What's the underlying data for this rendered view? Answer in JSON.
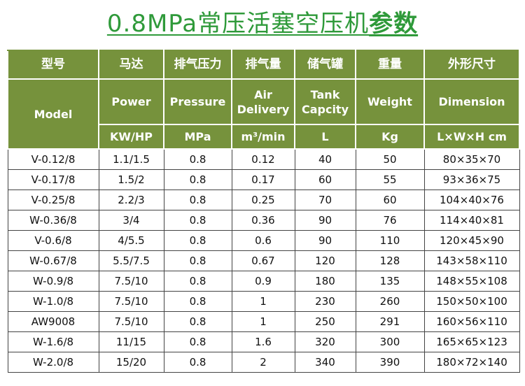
{
  "title": {
    "main": "0.8MPa常压活塞空压机",
    "emphasis": "参数"
  },
  "table": {
    "header_zh": [
      "型号",
      "马达",
      "排气压力",
      "排气量",
      "储气罐",
      "重量",
      "外形尺寸"
    ],
    "header_en": [
      "Model",
      "Power",
      "Pressure",
      "Air Delivery",
      "Tank Capcity",
      "Weight",
      "Dimension"
    ],
    "units": [
      "KW/HP",
      "MPa",
      "m³/min",
      "L",
      "Kg",
      "L×W×H cm"
    ],
    "rows": [
      [
        "V-0.12/8",
        "1.1/1.5",
        "0.8",
        "0.12",
        "40",
        "50",
        "80×35×70"
      ],
      [
        "V-0.17/8",
        "1.5/2",
        "0.8",
        "0.17",
        "60",
        "55",
        "93×36×75"
      ],
      [
        "V-0.25/8",
        "2.2/3",
        "0.8",
        "0.25",
        "70",
        "60",
        "104×40×76"
      ],
      [
        "W-0.36/8",
        "3/4",
        "0.8",
        "0.36",
        "90",
        "76",
        "114×40×81"
      ],
      [
        "V-0.6/8",
        "4/5.5",
        "0.8",
        "0.6",
        "90",
        "110",
        "120×45×90"
      ],
      [
        "W-0.67/8",
        "5.5/7.5",
        "0.8",
        "0.67",
        "120",
        "128",
        "143×58×110"
      ],
      [
        "W-0.9/8",
        "7.5/10",
        "0.8",
        "0.9",
        "180",
        "135",
        "148×55×108"
      ],
      [
        "W-1.0/8",
        "7.5/10",
        "0.8",
        "1",
        "230",
        "260",
        "150×50×100"
      ],
      [
        "AW9008",
        "7.5/10",
        "0.8",
        "1",
        "250",
        "291",
        "160×56×110"
      ],
      [
        "W-1.6/8",
        "11/15",
        "0.8",
        "1.6",
        "320",
        "300",
        "165×65×123"
      ],
      [
        "W-2.0/8",
        "15/20",
        "0.8",
        "2",
        "340",
        "390",
        "180×72×140"
      ]
    ]
  }
}
